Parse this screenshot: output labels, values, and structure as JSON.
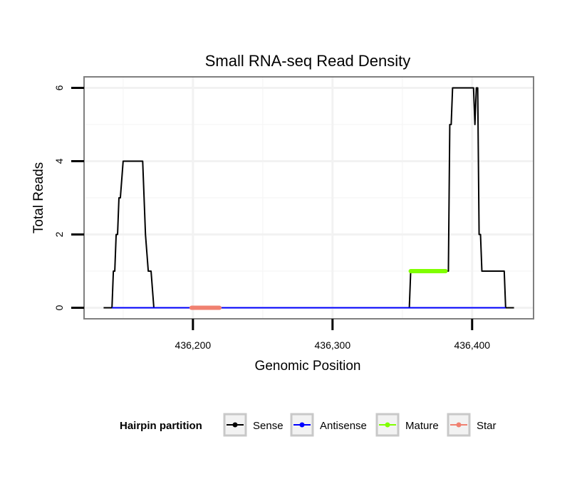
{
  "chart_data": {
    "type": "line",
    "title": "Small RNA-seq Read Density",
    "xlabel": "Genomic Position",
    "ylabel": "Total Reads",
    "xlim": [
      436122,
      436444
    ],
    "ylim": [
      -0.3,
      6.3
    ],
    "x_ticks": [
      436200,
      436300,
      436400
    ],
    "x_tick_labels": [
      "436,200",
      "436,300",
      "436,400"
    ],
    "y_ticks": [
      0,
      2,
      4,
      6
    ],
    "y_tick_labels": [
      "0",
      "2",
      "4",
      "6"
    ],
    "grid": true,
    "legend_title": "Hairpin partition",
    "legend_position": "bottom",
    "series": [
      {
        "name": "Sense",
        "color": "#000000",
        "x": [
          436136,
          436142,
          436143,
          436144,
          436145,
          436146,
          436147,
          436148,
          436149,
          436150,
          436151,
          436152,
          436164,
          436165,
          436166,
          436167,
          436168,
          436169,
          436170,
          436172,
          436173,
          436174,
          436175,
          436354,
          436355,
          436356,
          436382,
          436383,
          436384,
          436385,
          436386,
          436387,
          436401,
          436402,
          436403,
          436404,
          436405,
          436406,
          436407,
          436408,
          436409,
          436410,
          436411,
          436423,
          436424,
          436430
        ],
        "y": [
          0,
          0,
          1,
          1,
          2,
          2,
          3,
          3,
          3.5,
          4,
          4,
          4,
          4,
          3,
          2,
          1.5,
          1,
          1,
          1,
          0,
          0,
          0,
          0,
          0,
          0,
          1,
          1,
          1,
          5,
          5,
          6,
          6,
          6,
          5,
          6,
          6,
          2,
          2,
          1,
          1,
          1,
          1,
          1,
          1,
          0,
          0
        ]
      },
      {
        "name": "Antisense",
        "color": "#0000ff",
        "x": [
          436142,
          436174,
          436354,
          436424
        ],
        "y": [
          0,
          0,
          0,
          0
        ]
      },
      {
        "name": "Mature",
        "color": "#80ff00",
        "x": [
          436356,
          436381
        ],
        "y": [
          1,
          1
        ]
      },
      {
        "name": "Star",
        "color": "#f08070",
        "x": [
          436199,
          436219
        ],
        "y": [
          0,
          0
        ]
      }
    ]
  }
}
